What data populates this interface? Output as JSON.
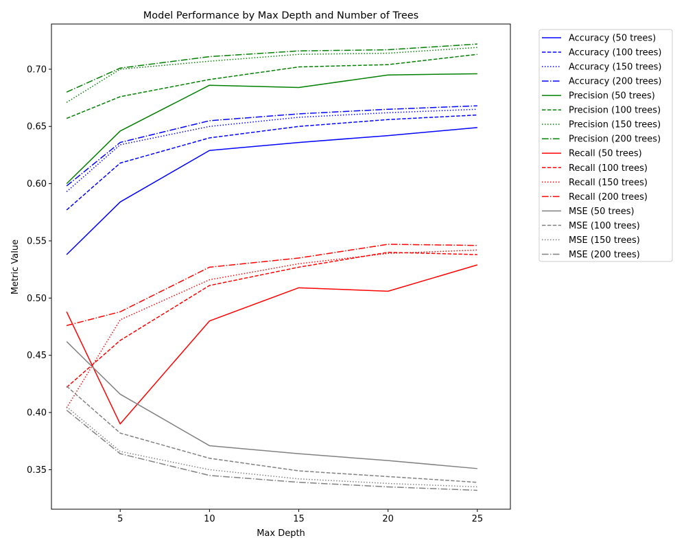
{
  "chart_data": {
    "type": "line",
    "title": "Model Performance by Max Depth and Number of Trees",
    "xlabel": "Max Depth",
    "ylabel": "Metric Value",
    "x": [
      2,
      5,
      10,
      15,
      20,
      25
    ],
    "xlim": [
      1.15,
      26.85
    ],
    "ylim": [
      0.3155,
      0.7395
    ],
    "xticks": [
      5,
      10,
      15,
      20,
      25
    ],
    "yticks": [
      0.35,
      0.4,
      0.45,
      0.5,
      0.55,
      0.6,
      0.65,
      0.7
    ],
    "grid": false,
    "legend_position": "outside-right",
    "series": [
      {
        "name": "Accuracy (50 trees)",
        "color": "#0000ff",
        "dash": "solid",
        "values": [
          0.538,
          0.584,
          0.629,
          0.636,
          0.642,
          0.649
        ]
      },
      {
        "name": "Accuracy (100 trees)",
        "color": "#0000ff",
        "dash": "dashed",
        "values": [
          0.577,
          0.618,
          0.64,
          0.65,
          0.656,
          0.66
        ]
      },
      {
        "name": "Accuracy (150 trees)",
        "color": "#0000ff",
        "dash": "dotted",
        "values": [
          0.593,
          0.634,
          0.65,
          0.658,
          0.662,
          0.665
        ]
      },
      {
        "name": "Accuracy (200 trees)",
        "color": "#0000ff",
        "dash": "dashdot",
        "values": [
          0.598,
          0.636,
          0.655,
          0.661,
          0.665,
          0.668
        ]
      },
      {
        "name": "Precision (50 trees)",
        "color": "#008000",
        "dash": "solid",
        "values": [
          0.6,
          0.646,
          0.686,
          0.684,
          0.695,
          0.696
        ]
      },
      {
        "name": "Precision (100 trees)",
        "color": "#008000",
        "dash": "dashed",
        "values": [
          0.657,
          0.676,
          0.691,
          0.702,
          0.704,
          0.713
        ]
      },
      {
        "name": "Precision (150 trees)",
        "color": "#008000",
        "dash": "dotted",
        "values": [
          0.671,
          0.7,
          0.707,
          0.713,
          0.714,
          0.719
        ]
      },
      {
        "name": "Precision (200 trees)",
        "color": "#008000",
        "dash": "dashdot",
        "values": [
          0.68,
          0.701,
          0.711,
          0.716,
          0.717,
          0.722
        ]
      },
      {
        "name": "Recall (50 trees)",
        "color": "#ff0000",
        "dash": "solid",
        "values": [
          0.488,
          0.39,
          0.48,
          0.509,
          0.506,
          0.529
        ]
      },
      {
        "name": "Recall (100 trees)",
        "color": "#ff0000",
        "dash": "dashed",
        "values": [
          0.422,
          0.463,
          0.511,
          0.527,
          0.54,
          0.538
        ]
      },
      {
        "name": "Recall (150 trees)",
        "color": "#ff0000",
        "dash": "dotted",
        "values": [
          0.404,
          0.481,
          0.516,
          0.53,
          0.539,
          0.542
        ]
      },
      {
        "name": "Recall (200 trees)",
        "color": "#ff0000",
        "dash": "dashdot",
        "values": [
          0.476,
          0.488,
          0.527,
          0.535,
          0.547,
          0.546
        ]
      },
      {
        "name": "MSE (50 trees)",
        "color": "#808080",
        "dash": "solid",
        "values": [
          0.462,
          0.416,
          0.371,
          0.364,
          0.358,
          0.351
        ]
      },
      {
        "name": "MSE (100 trees)",
        "color": "#808080",
        "dash": "dashed",
        "values": [
          0.423,
          0.382,
          0.36,
          0.349,
          0.344,
          0.339
        ]
      },
      {
        "name": "MSE (150 trees)",
        "color": "#808080",
        "dash": "dotted",
        "values": [
          0.405,
          0.366,
          0.35,
          0.342,
          0.338,
          0.335
        ]
      },
      {
        "name": "MSE (200 trees)",
        "color": "#808080",
        "dash": "dashdot",
        "values": [
          0.402,
          0.364,
          0.345,
          0.339,
          0.335,
          0.332
        ]
      }
    ]
  }
}
